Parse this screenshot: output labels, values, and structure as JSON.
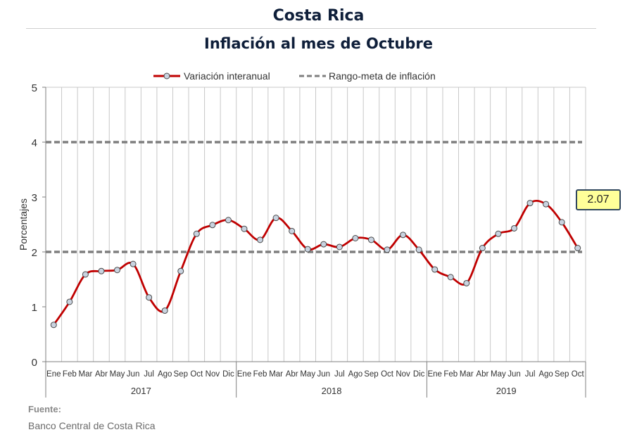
{
  "title": "Costa Rica",
  "subtitle": "Inflación al mes de Octubre",
  "source_label": "Fuente:",
  "source_text": "Banco Central de Costa Rica",
  "callout": "2.07",
  "chart_data": {
    "type": "line",
    "title": "Inflación al mes de Octubre",
    "ylabel": "Porcentajes",
    "ylim": [
      0,
      5
    ],
    "yticks": [
      "0",
      "1",
      "2",
      "3",
      "4",
      "5"
    ],
    "grid": true,
    "legend_position": "top",
    "categories": [
      "Ene",
      "Feb",
      "Mar",
      "Abr",
      "May",
      "Jun",
      "Jul",
      "Ago",
      "Sep",
      "Oct",
      "Nov",
      "Dic",
      "Ene",
      "Feb",
      "Mar",
      "Abr",
      "May",
      "Jun",
      "Jul",
      "Ago",
      "Sep",
      "Oct",
      "Nov",
      "Dic",
      "Ene",
      "Feb",
      "Mar",
      "Abr",
      "May",
      "Jun",
      "Jul",
      "Ago",
      "Sep",
      "Oct"
    ],
    "groups": [
      {
        "label": "2017",
        "count": 12
      },
      {
        "label": "2018",
        "count": 12
      },
      {
        "label": "2019",
        "count": 10
      }
    ],
    "series": [
      {
        "name": "Variación interanual",
        "color": "#c00000",
        "marker": "circle",
        "values": [
          0.67,
          1.09,
          1.59,
          1.65,
          1.67,
          1.78,
          1.17,
          0.93,
          1.65,
          2.33,
          2.49,
          2.58,
          2.42,
          2.22,
          2.62,
          2.38,
          2.05,
          2.14,
          2.09,
          2.25,
          2.22,
          2.04,
          2.31,
          2.04,
          1.68,
          1.54,
          1.43,
          2.07,
          2.33,
          2.43,
          2.89,
          2.87,
          2.54,
          2.07
        ]
      },
      {
        "name": "Rango-meta de inflación",
        "color": "#7f7f7f",
        "style": "dashed",
        "lines": [
          2,
          4
        ]
      }
    ]
  }
}
